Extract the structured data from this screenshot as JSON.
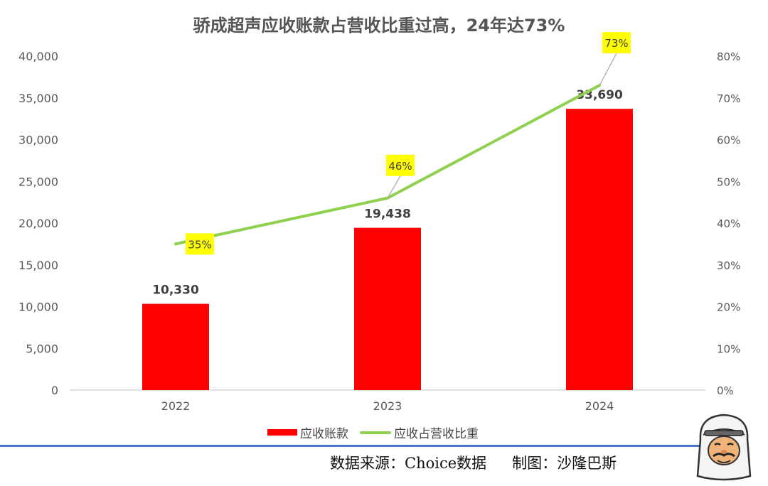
{
  "chart_data": {
    "type": "bar",
    "title": "骄成超声应收账款占营收比重过高，24年达73%",
    "categories": [
      "2022",
      "2023",
      "2024"
    ],
    "series": [
      {
        "name": "应收账款",
        "type": "bar",
        "axis": "left",
        "color": "#ff0000",
        "values": [
          10330,
          19438,
          33690
        ],
        "labels": [
          "10,330",
          "19,438",
          "33,690"
        ]
      },
      {
        "name": "应收占营收比重",
        "type": "line",
        "axis": "right",
        "color": "#8fd14f",
        "values": [
          35,
          46,
          73
        ],
        "labels": [
          "35%",
          "46%",
          "73%"
        ]
      }
    ],
    "y_left": {
      "min": 0,
      "max": 40000,
      "ticks": [
        "0",
        "5,000",
        "10,000",
        "15,000",
        "20,000",
        "25,000",
        "30,000",
        "35,000",
        "40,000"
      ]
    },
    "y_right": {
      "min": 0,
      "max": 80,
      "ticks": [
        "0%",
        "10%",
        "20%",
        "30%",
        "40%",
        "50%",
        "60%",
        "70%",
        "80%"
      ]
    },
    "grid": false,
    "legend_position": "bottom"
  },
  "footer": {
    "source": "数据来源：Choice数据",
    "author": "制图：沙隆巴斯"
  }
}
